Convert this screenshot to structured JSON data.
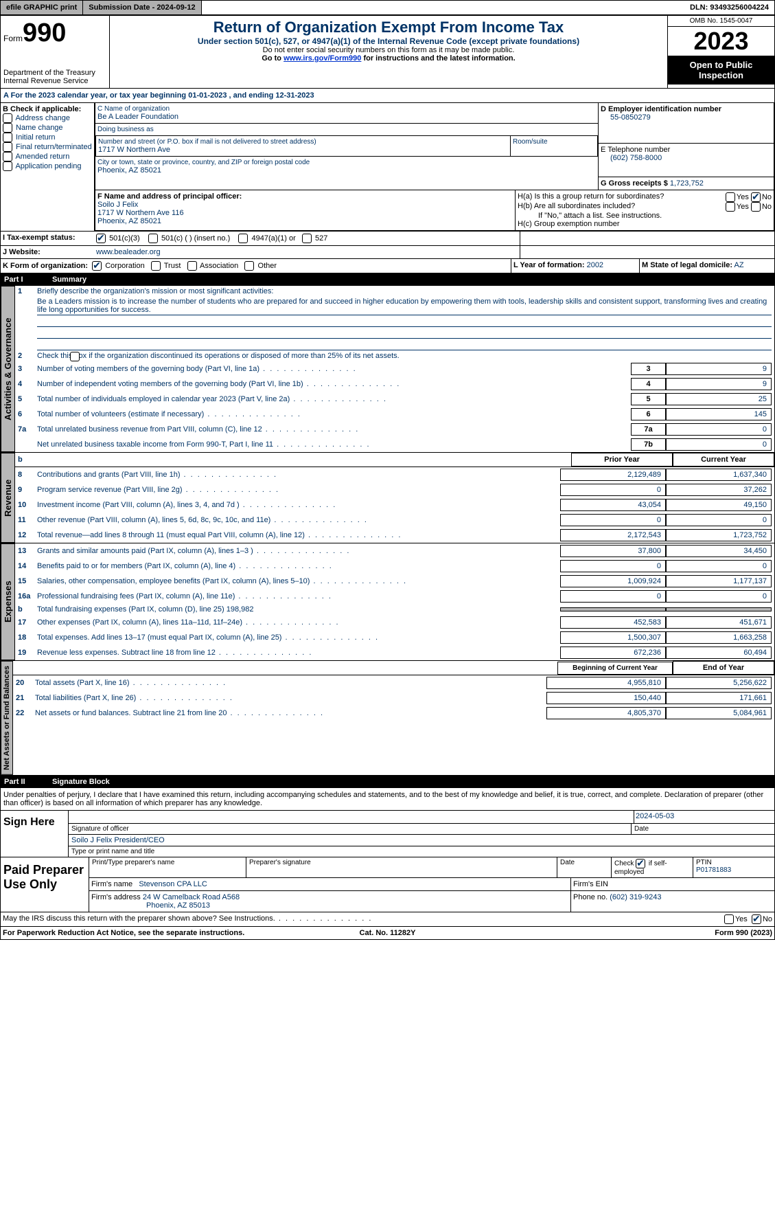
{
  "topbar": {
    "efile": "efile GRAPHIC print",
    "submission": "Submission Date - 2024-09-12",
    "dln": "DLN: 93493256004224"
  },
  "header": {
    "form_label": "Form",
    "form_num": "990",
    "dept": "Department of the Treasury\nInternal Revenue Service",
    "title": "Return of Organization Exempt From Income Tax",
    "sub": "Under section 501(c), 527, or 4947(a)(1) of the Internal Revenue Code (except private foundations)",
    "note1": "Do not enter social security numbers on this form as it may be made public.",
    "note2_pre": "Go to ",
    "note2_link": "www.irs.gov/Form990",
    "note2_post": " for instructions and the latest information.",
    "omb": "OMB No. 1545-0047",
    "year": "2023",
    "open": "Open to Public Inspection"
  },
  "period": {
    "pre": "A For the 2023 calendar year, or tax year beginning ",
    "begin": "01-01-2023",
    "mid": " , and ending ",
    "end": "12-31-2023"
  },
  "boxB": {
    "hdr": "B Check if applicable:",
    "items": [
      "Address change",
      "Name change",
      "Initial return",
      "Final return/terminated",
      "Amended return",
      "Application pending"
    ]
  },
  "boxC": {
    "name_lbl": "C Name of organization",
    "name": "Be A Leader Foundation",
    "dba_lbl": "Doing business as",
    "dba": "",
    "addr_lbl": "Number and street (or P.O. box if mail is not delivered to street address)",
    "room_lbl": "Room/suite",
    "addr": "1717 W Northern Ave",
    "city_lbl": "City or town, state or province, country, and ZIP or foreign postal code",
    "city": "Phoenix, AZ  85021"
  },
  "boxD": {
    "lbl": "D Employer identification number",
    "val": "55-0850279"
  },
  "boxE": {
    "lbl": "E Telephone number",
    "val": "(602) 758-8000"
  },
  "boxG": {
    "lbl": "G Gross receipts $",
    "val": "1,723,752"
  },
  "boxF": {
    "lbl": "F Name and address of principal officer:",
    "name": "Soilo J Felix",
    "addr1": "1717 W Northern Ave 116",
    "addr2": "Phoenix, AZ  85021"
  },
  "boxH": {
    "ha": "H(a) Is this a group return for subordinates?",
    "hb": "H(b) Are all subordinates included?",
    "hb_note": "If \"No,\" attach a list. See instructions.",
    "hc": "H(c) Group exemption number",
    "yes": "Yes",
    "no": "No",
    "ha_no_checked": true
  },
  "boxI": {
    "lbl": "I   Tax-exempt status:",
    "o1": "501(c)(3)",
    "o2": "501(c) (  ) (insert no.)",
    "o3": "4947(a)(1) or",
    "o4": "527"
  },
  "boxJ": {
    "lbl": "J   Website:",
    "val": "www.bealeader.org"
  },
  "boxK": {
    "lbl": "K Form of organization:",
    "o1": "Corporation",
    "o2": "Trust",
    "o3": "Association",
    "o4": "Other"
  },
  "boxL": {
    "lbl": "L Year of formation:",
    "val": "2002"
  },
  "boxM": {
    "lbl": "M State of legal domicile:",
    "val": "AZ"
  },
  "part1": {
    "hdr": "Part I",
    "title": "Summary"
  },
  "sectA": {
    "tab": "Activities & Governance",
    "l1": "Briefly describe the organization's mission or most significant activities:",
    "mission": "Be a Leaders mission is to increase the number of students who are prepared for and succeed in higher education by empowering them with tools, leadership skills and consistent support, transforming lives and creating life long opportunities for success.",
    "l2": "Check this box        if the organization discontinued its operations or disposed of more than 25% of its net assets.",
    "rows": [
      {
        "n": "3",
        "t": "Number of voting members of the governing body (Part VI, line 1a)",
        "box": "3",
        "v": "9"
      },
      {
        "n": "4",
        "t": "Number of independent voting members of the governing body (Part VI, line 1b)",
        "box": "4",
        "v": "9"
      },
      {
        "n": "5",
        "t": "Total number of individuals employed in calendar year 2023 (Part V, line 2a)",
        "box": "5",
        "v": "25"
      },
      {
        "n": "6",
        "t": "Total number of volunteers (estimate if necessary)",
        "box": "6",
        "v": "145"
      },
      {
        "n": "7a",
        "t": "Total unrelated business revenue from Part VIII, column (C), line 12",
        "box": "7a",
        "v": "0"
      },
      {
        "n": "",
        "t": "Net unrelated business taxable income from Form 990-T, Part I, line 11",
        "box": "7b",
        "v": "0"
      }
    ]
  },
  "sectR": {
    "tab": "Revenue",
    "hdr_b": "b",
    "hdr_prior": "Prior Year",
    "hdr_cur": "Current Year",
    "rows": [
      {
        "n": "8",
        "t": "Contributions and grants (Part VIII, line 1h)",
        "p": "2,129,489",
        "c": "1,637,340"
      },
      {
        "n": "9",
        "t": "Program service revenue (Part VIII, line 2g)",
        "p": "0",
        "c": "37,262"
      },
      {
        "n": "10",
        "t": "Investment income (Part VIII, column (A), lines 3, 4, and 7d )",
        "p": "43,054",
        "c": "49,150"
      },
      {
        "n": "11",
        "t": "Other revenue (Part VIII, column (A), lines 5, 6d, 8c, 9c, 10c, and 11e)",
        "p": "0",
        "c": "0"
      },
      {
        "n": "12",
        "t": "Total revenue—add lines 8 through 11 (must equal Part VIII, column (A), line 12)",
        "p": "2,172,543",
        "c": "1,723,752"
      }
    ]
  },
  "sectE": {
    "tab": "Expenses",
    "rows": [
      {
        "n": "13",
        "t": "Grants and similar amounts paid (Part IX, column (A), lines 1–3 )",
        "p": "37,800",
        "c": "34,450"
      },
      {
        "n": "14",
        "t": "Benefits paid to or for members (Part IX, column (A), line 4)",
        "p": "0",
        "c": "0"
      },
      {
        "n": "15",
        "t": "Salaries, other compensation, employee benefits (Part IX, column (A), lines 5–10)",
        "p": "1,009,924",
        "c": "1,177,137"
      },
      {
        "n": "16a",
        "t": "Professional fundraising fees (Part IX, column (A), line 11e)",
        "p": "0",
        "c": "0"
      }
    ],
    "line_b": {
      "n": "b",
      "t": "Total fundraising expenses (Part IX, column (D), line 25)",
      "v": "198,982"
    },
    "rows2": [
      {
        "n": "17",
        "t": "Other expenses (Part IX, column (A), lines 11a–11d, 11f–24e)",
        "p": "452,583",
        "c": "451,671"
      },
      {
        "n": "18",
        "t": "Total expenses. Add lines 13–17 (must equal Part IX, column (A), line 25)",
        "p": "1,500,307",
        "c": "1,663,258"
      },
      {
        "n": "19",
        "t": "Revenue less expenses. Subtract line 18 from line 12",
        "p": "672,236",
        "c": "60,494"
      }
    ]
  },
  "sectN": {
    "tab": "Net Assets or Fund Balances",
    "hdr_b": "Beginning of Current Year",
    "hdr_e": "End of Year",
    "rows": [
      {
        "n": "20",
        "t": "Total assets (Part X, line 16)",
        "p": "4,955,810",
        "c": "5,256,622"
      },
      {
        "n": "21",
        "t": "Total liabilities (Part X, line 26)",
        "p": "150,440",
        "c": "171,661"
      },
      {
        "n": "22",
        "t": "Net assets or fund balances. Subtract line 21 from line 20",
        "p": "4,805,370",
        "c": "5,084,961"
      }
    ]
  },
  "part2": {
    "hdr": "Part II",
    "title": "Signature Block"
  },
  "sig": {
    "decl": "Under penalties of perjury, I declare that I have examined this return, including accompanying schedules and statements, and to the best of my knowledge and belief, it is true, correct, and complete. Declaration of preparer (other than officer) is based on all information of which preparer has any knowledge.",
    "here": "Sign Here",
    "date": "2024-05-03",
    "sig_lbl": "Signature of officer",
    "date_lbl": "Date",
    "officer": "Soilo J Felix  President/CEO",
    "type_lbl": "Type or print name and title"
  },
  "paid": {
    "hdr": "Paid Preparer Use Only",
    "c1": "Print/Type preparer's name",
    "c2": "Preparer's signature",
    "c3": "Date",
    "c4_pre": "Check",
    "c4_post": "if self-employed",
    "c5": "PTIN",
    "ptin": "P01781883",
    "firm_lbl": "Firm's name",
    "firm": "Stevenson CPA LLC",
    "ein_lbl": "Firm's EIN",
    "addr_lbl": "Firm's address",
    "addr": "24 W Camelback Road A568",
    "city": "Phoenix, AZ  85013",
    "phone_lbl": "Phone no.",
    "phone": "(602) 319-9243"
  },
  "discuss": {
    "txt": "May the IRS discuss this return with the preparer shown above? See Instructions.",
    "yes": "Yes",
    "no": "No"
  },
  "footer": {
    "pra": "For Paperwork Reduction Act Notice, see the separate instructions.",
    "cat": "Cat. No. 11282Y",
    "form": "Form 990 (2023)"
  }
}
